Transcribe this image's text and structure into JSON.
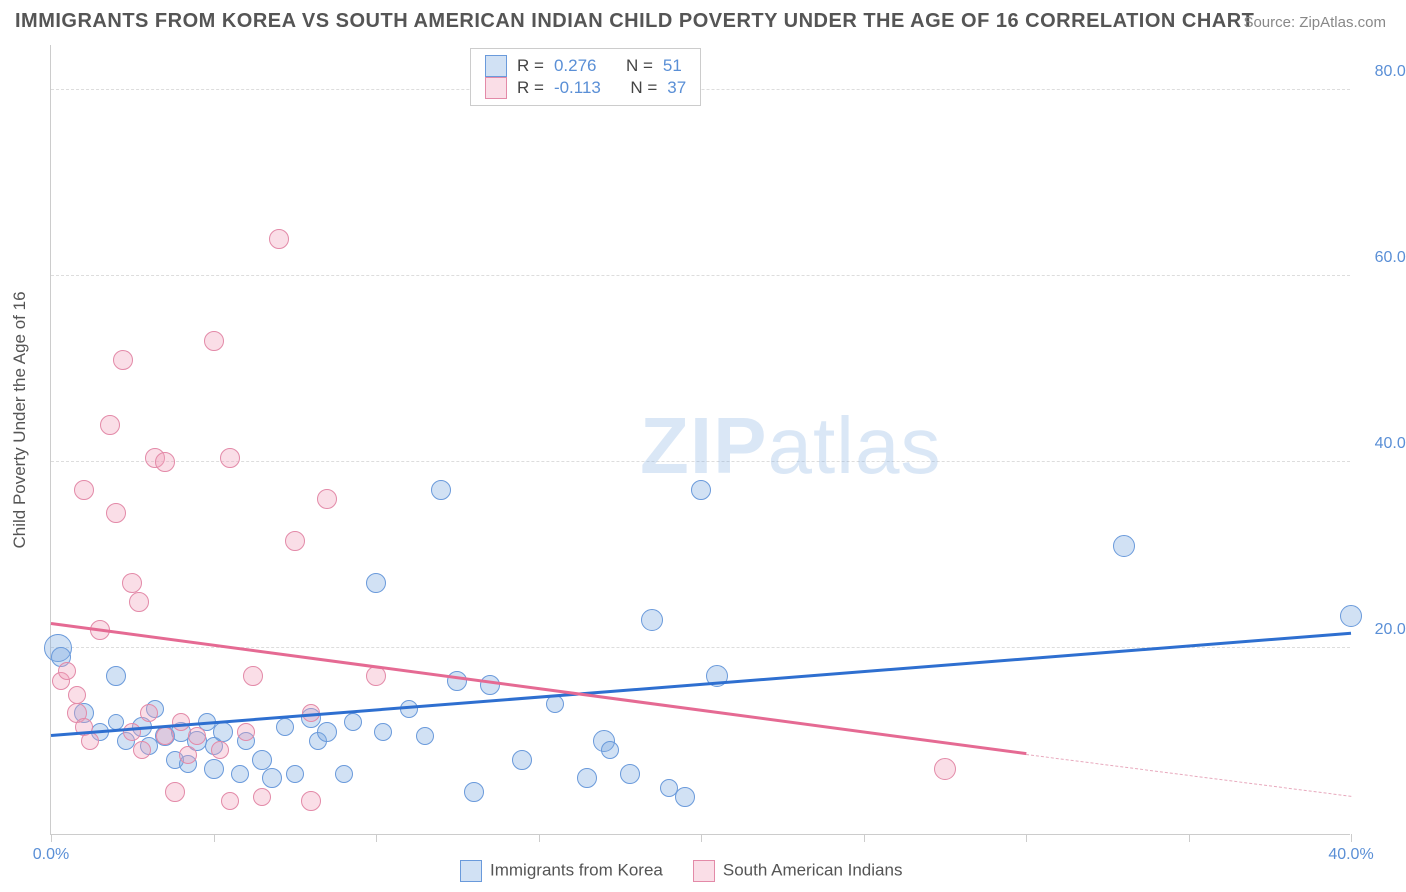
{
  "title": "IMMIGRANTS FROM KOREA VS SOUTH AMERICAN INDIAN CHILD POVERTY UNDER THE AGE OF 16 CORRELATION CHART",
  "source": "Source: ZipAtlas.com",
  "y_axis_label": "Child Poverty Under the Age of 16",
  "watermark_bold": "ZIP",
  "watermark_light": "atlas",
  "chart": {
    "type": "scatter",
    "background_color": "#ffffff",
    "grid_color": "#dddddd",
    "axis_color": "#cccccc",
    "tick_label_color": "#5a8fd6",
    "xlim": [
      0,
      40
    ],
    "ylim": [
      0,
      85
    ],
    "y_ticks": [
      20,
      40,
      60,
      80
    ],
    "y_tick_labels": [
      "20.0%",
      "40.0%",
      "60.0%",
      "80.0%"
    ],
    "x_ticks": [
      0,
      5,
      10,
      15,
      20,
      25,
      30,
      35,
      40
    ],
    "x_tick_labels": [
      "0.0%",
      "",
      "",
      "",
      "",
      "",
      "",
      "",
      "40.0%"
    ],
    "series": [
      {
        "name": "Immigrants from Korea",
        "color_fill": "rgba(122,168,224,0.35)",
        "color_stroke": "#6a9adb",
        "marker_radius": 10,
        "correlation_R": "0.276",
        "N": "51",
        "trend": {
          "x1": 0,
          "y1": 10.5,
          "x2": 40,
          "y2": 21.5,
          "color": "#2e6fd0",
          "width": 2.5
        },
        "points": [
          {
            "x": 0.2,
            "y": 20.0,
            "r": 14
          },
          {
            "x": 0.3,
            "y": 19.0,
            "r": 10
          },
          {
            "x": 1.0,
            "y": 13.0,
            "r": 10
          },
          {
            "x": 1.5,
            "y": 11.0,
            "r": 9
          },
          {
            "x": 2.0,
            "y": 17.0,
            "r": 10
          },
          {
            "x": 2.0,
            "y": 12.0,
            "r": 8
          },
          {
            "x": 2.3,
            "y": 10.0,
            "r": 9
          },
          {
            "x": 2.8,
            "y": 11.5,
            "r": 10
          },
          {
            "x": 3.0,
            "y": 9.5,
            "r": 9
          },
          {
            "x": 3.2,
            "y": 13.5,
            "r": 9
          },
          {
            "x": 3.5,
            "y": 10.5,
            "r": 10
          },
          {
            "x": 3.8,
            "y": 8.0,
            "r": 9
          },
          {
            "x": 4.0,
            "y": 11.0,
            "r": 10
          },
          {
            "x": 4.2,
            "y": 7.5,
            "r": 9
          },
          {
            "x": 4.5,
            "y": 10.0,
            "r": 10
          },
          {
            "x": 4.8,
            "y": 12.0,
            "r": 9
          },
          {
            "x": 5.0,
            "y": 7.0,
            "r": 10
          },
          {
            "x": 5.0,
            "y": 9.5,
            "r": 9
          },
          {
            "x": 5.3,
            "y": 11.0,
            "r": 10
          },
          {
            "x": 5.8,
            "y": 6.5,
            "r": 9
          },
          {
            "x": 6.0,
            "y": 10.0,
            "r": 9
          },
          {
            "x": 6.5,
            "y": 8.0,
            "r": 10
          },
          {
            "x": 6.8,
            "y": 6.0,
            "r": 10
          },
          {
            "x": 7.2,
            "y": 11.5,
            "r": 9
          },
          {
            "x": 7.5,
            "y": 6.5,
            "r": 9
          },
          {
            "x": 8.0,
            "y": 12.5,
            "r": 10
          },
          {
            "x": 8.2,
            "y": 10.0,
            "r": 9
          },
          {
            "x": 8.5,
            "y": 11.0,
            "r": 10
          },
          {
            "x": 9.0,
            "y": 6.5,
            "r": 9
          },
          {
            "x": 9.3,
            "y": 12.0,
            "r": 9
          },
          {
            "x": 10.0,
            "y": 27.0,
            "r": 10
          },
          {
            "x": 10.2,
            "y": 11.0,
            "r": 9
          },
          {
            "x": 11.0,
            "y": 13.5,
            "r": 9
          },
          {
            "x": 11.5,
            "y": 10.5,
            "r": 9
          },
          {
            "x": 12.0,
            "y": 37.0,
            "r": 10
          },
          {
            "x": 12.5,
            "y": 16.5,
            "r": 10
          },
          {
            "x": 13.0,
            "y": 4.5,
            "r": 10
          },
          {
            "x": 13.5,
            "y": 16.0,
            "r": 10
          },
          {
            "x": 14.5,
            "y": 8.0,
            "r": 10
          },
          {
            "x": 15.5,
            "y": 14.0,
            "r": 9
          },
          {
            "x": 16.5,
            "y": 6.0,
            "r": 10
          },
          {
            "x": 17.0,
            "y": 10.0,
            "r": 11
          },
          {
            "x": 17.2,
            "y": 9.0,
            "r": 9
          },
          {
            "x": 17.8,
            "y": 6.5,
            "r": 10
          },
          {
            "x": 18.5,
            "y": 23.0,
            "r": 11
          },
          {
            "x": 19.0,
            "y": 5.0,
            "r": 9
          },
          {
            "x": 19.5,
            "y": 4.0,
            "r": 10
          },
          {
            "x": 20.0,
            "y": 37.0,
            "r": 10
          },
          {
            "x": 20.5,
            "y": 17.0,
            "r": 11
          },
          {
            "x": 33.0,
            "y": 31.0,
            "r": 11
          },
          {
            "x": 40.0,
            "y": 23.5,
            "r": 11
          }
        ]
      },
      {
        "name": "South American Indians",
        "color_fill": "rgba(240,160,185,0.35)",
        "color_stroke": "#e38aa8",
        "marker_radius": 10,
        "correlation_R": "-0.113",
        "N": "37",
        "trend": {
          "x1": 0,
          "y1": 22.5,
          "x2": 30,
          "y2": 8.5,
          "color": "#e56a93",
          "width": 2.5
        },
        "trend_extrapolate": {
          "x1": 30,
          "y1": 8.5,
          "x2": 40,
          "y2": 4.0
        },
        "points": [
          {
            "x": 0.3,
            "y": 16.5,
            "r": 9
          },
          {
            "x": 0.5,
            "y": 17.5,
            "r": 9
          },
          {
            "x": 0.8,
            "y": 15.0,
            "r": 9
          },
          {
            "x": 0.8,
            "y": 13.0,
            "r": 10
          },
          {
            "x": 1.0,
            "y": 11.5,
            "r": 9
          },
          {
            "x": 1.0,
            "y": 37.0,
            "r": 10
          },
          {
            "x": 1.2,
            "y": 10.0,
            "r": 9
          },
          {
            "x": 1.5,
            "y": 22.0,
            "r": 10
          },
          {
            "x": 1.8,
            "y": 44.0,
            "r": 10
          },
          {
            "x": 2.0,
            "y": 34.5,
            "r": 10
          },
          {
            "x": 2.2,
            "y": 51.0,
            "r": 10
          },
          {
            "x": 2.5,
            "y": 27.0,
            "r": 10
          },
          {
            "x": 2.5,
            "y": 11.0,
            "r": 9
          },
          {
            "x": 2.7,
            "y": 25.0,
            "r": 10
          },
          {
            "x": 2.8,
            "y": 9.0,
            "r": 9
          },
          {
            "x": 3.0,
            "y": 13.0,
            "r": 9
          },
          {
            "x": 3.2,
            "y": 40.5,
            "r": 10
          },
          {
            "x": 3.5,
            "y": 40.0,
            "r": 10
          },
          {
            "x": 3.5,
            "y": 10.5,
            "r": 9
          },
          {
            "x": 3.8,
            "y": 4.5,
            "r": 10
          },
          {
            "x": 4.0,
            "y": 12.0,
            "r": 9
          },
          {
            "x": 4.2,
            "y": 8.5,
            "r": 9
          },
          {
            "x": 4.5,
            "y": 10.5,
            "r": 9
          },
          {
            "x": 5.0,
            "y": 53.0,
            "r": 10
          },
          {
            "x": 5.2,
            "y": 9.0,
            "r": 9
          },
          {
            "x": 5.5,
            "y": 40.5,
            "r": 10
          },
          {
            "x": 5.5,
            "y": 3.5,
            "r": 9
          },
          {
            "x": 6.0,
            "y": 11.0,
            "r": 9
          },
          {
            "x": 6.2,
            "y": 17.0,
            "r": 10
          },
          {
            "x": 6.5,
            "y": 4.0,
            "r": 9
          },
          {
            "x": 7.0,
            "y": 64.0,
            "r": 10
          },
          {
            "x": 7.5,
            "y": 31.5,
            "r": 10
          },
          {
            "x": 8.0,
            "y": 13.0,
            "r": 9
          },
          {
            "x": 8.0,
            "y": 3.5,
            "r": 10
          },
          {
            "x": 8.5,
            "y": 36.0,
            "r": 10
          },
          {
            "x": 10.0,
            "y": 17.0,
            "r": 10
          },
          {
            "x": 27.5,
            "y": 7.0,
            "r": 11
          }
        ]
      }
    ]
  },
  "legend_top": {
    "R_label": "R  =",
    "N_label": "N  ="
  },
  "legend_bottom": {
    "series1": "Immigrants from Korea",
    "series2": "South American Indians"
  }
}
